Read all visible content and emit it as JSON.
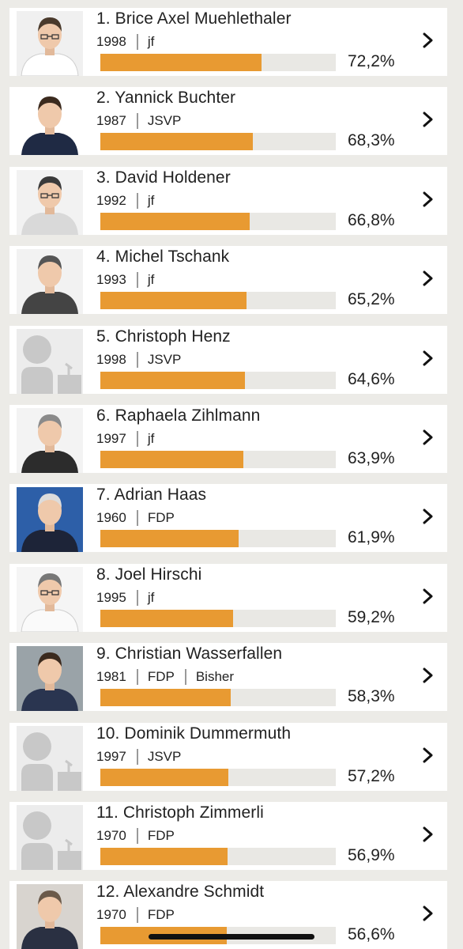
{
  "candidates": [
    {
      "name": "1. Brice Axel Muehlethaler",
      "year": "1998",
      "party": "jf",
      "extra": "",
      "percent_label": "72,2%",
      "percent": 72.2,
      "photo": "person-photo-grey-background",
      "photo_bg": "#f0f0f0",
      "shirt": "#ffffff",
      "hair": "#4a3a2c",
      "glasses": true
    },
    {
      "name": "2. Yannick Buchter",
      "year": "1987",
      "party": "JSVP",
      "extra": "",
      "percent_label": "68,3%",
      "percent": 68.3,
      "photo": "person-photo-white-background",
      "photo_bg": "#ffffff",
      "shirt": "#1f2a44",
      "hair": "#3b2a1e",
      "glasses": false
    },
    {
      "name": "3. David Holdener",
      "year": "1992",
      "party": "jf",
      "extra": "",
      "percent_label": "66,8%",
      "percent": 66.8,
      "photo": "person-photo-grey-background",
      "photo_bg": "#f2f2f2",
      "shirt": "#d9d9d9",
      "hair": "#3a3a3a",
      "glasses": true
    },
    {
      "name": "4. Michel Tschank",
      "year": "1993",
      "party": "jf",
      "extra": "",
      "percent_label": "65,2%",
      "percent": 65.2,
      "photo": "person-photo-grey-background",
      "photo_bg": "#f2f2f2",
      "shirt": "#444444",
      "hair": "#555555",
      "glasses": false
    },
    {
      "name": "5. Christoph Henz",
      "year": "1998",
      "party": "JSVP",
      "extra": "",
      "percent_label": "64,6%",
      "percent": 64.6,
      "photo": "placeholder-avatar",
      "photo_bg": "#ececec",
      "shirt": "",
      "hair": "",
      "glasses": false
    },
    {
      "name": "6. Raphaela Zihlmann",
      "year": "1997",
      "party": "jf",
      "extra": "",
      "percent_label": "63,9%",
      "percent": 63.9,
      "photo": "person-photo-grey-background",
      "photo_bg": "#f3f3f3",
      "shirt": "#2c2c2c",
      "hair": "#8a8a8a",
      "glasses": false
    },
    {
      "name": "7. Adrian Haas",
      "year": "1960",
      "party": "FDP",
      "extra": "",
      "percent_label": "61,9%",
      "percent": 61.9,
      "photo": "person-photo-blue-background",
      "photo_bg": "#2d5fa8",
      "shirt": "#1d2438",
      "hair": "#dcdcdc",
      "glasses": false
    },
    {
      "name": "8. Joel Hirschi",
      "year": "1995",
      "party": "jf",
      "extra": "",
      "percent_label": "59,2%",
      "percent": 59.2,
      "photo": "person-photo-grey-background",
      "photo_bg": "#f5f5f5",
      "shirt": "#fafafa",
      "hair": "#777777",
      "glasses": true
    },
    {
      "name": "9. Christian Wasserfallen",
      "year": "1981",
      "party": "FDP",
      "extra": "Bisher",
      "percent_label": "58,3%",
      "percent": 58.3,
      "photo": "person-photo-grey-background",
      "photo_bg": "#9aa3a8",
      "shirt": "#2a3550",
      "hair": "#3b2a1e",
      "glasses": false
    },
    {
      "name": "10. Dominik Dummermuth",
      "year": "1997",
      "party": "JSVP",
      "extra": "",
      "percent_label": "57,2%",
      "percent": 57.2,
      "photo": "placeholder-avatar",
      "photo_bg": "#ececec",
      "shirt": "",
      "hair": "",
      "glasses": false
    },
    {
      "name": "11. Christoph Zimmerli",
      "year": "1970",
      "party": "FDP",
      "extra": "",
      "percent_label": "56,9%",
      "percent": 56.9,
      "photo": "placeholder-avatar",
      "photo_bg": "#ececec",
      "shirt": "",
      "hair": "",
      "glasses": false
    },
    {
      "name": "12. Alexandre Schmidt",
      "year": "1970",
      "party": "FDP",
      "extra": "",
      "percent_label": "56,6%",
      "percent": 56.6,
      "photo": "person-photo-grey-background",
      "photo_bg": "#d8d4cf",
      "shirt": "#2a3042",
      "hair": "#6b5a4a",
      "glasses": false
    }
  ],
  "colors": {
    "bar_fill": "#e89a32",
    "bar_track": "#e9e8e4",
    "page_background": "#ecebe7",
    "placeholder_silhouette": "#c8c8c8"
  },
  "icons": {
    "row_action": "chevron-right-icon"
  }
}
